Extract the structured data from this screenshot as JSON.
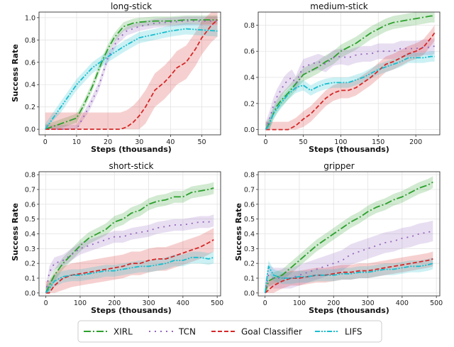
{
  "chart_data": {
    "type": "line",
    "legend": {
      "placement": "bottom",
      "entries": [
        {
          "name": "XIRL",
          "color": "#2ca02c",
          "style": "dashdot"
        },
        {
          "name": "TCN",
          "color": "#9467bd",
          "style": "loosedash"
        },
        {
          "name": "Goal Classifier",
          "color": "#d62728",
          "style": "dashed"
        },
        {
          "name": "LIFS",
          "color": "#17becf",
          "style": "dashdotdot"
        }
      ]
    },
    "colors": {
      "XIRL": "#2ca02c",
      "TCN": "#9467bd",
      "Goal Classifier": "#d62728",
      "LIFS": "#17becf"
    },
    "charts": [
      {
        "title": "long-stick",
        "xlabel": "Steps (thousands)",
        "ylabel": "Success Rate",
        "xlim": [
          -2,
          56
        ],
        "ylim": [
          -0.05,
          1.05
        ],
        "xticks": [
          0,
          10,
          20,
          30,
          40,
          50
        ],
        "yticks": [
          0.0,
          0.2,
          0.4,
          0.6,
          0.8,
          1.0
        ],
        "ytick_labels": [
          "0.0",
          "0.2",
          "0.4",
          "0.6",
          "0.8",
          "1.0"
        ],
        "grid": true,
        "series": [
          {
            "name": "XIRL",
            "x": [
              0,
              5,
              10,
              12,
              15,
              18,
              20,
              22,
              25,
              28,
              30,
              35,
              40,
              45,
              50,
              55
            ],
            "values": [
              0.0,
              0.05,
              0.1,
              0.2,
              0.38,
              0.6,
              0.72,
              0.82,
              0.92,
              0.95,
              0.96,
              0.97,
              0.97,
              0.98,
              0.98,
              0.98
            ],
            "band": 0.04
          },
          {
            "name": "TCN",
            "x": [
              0,
              5,
              10,
              14,
              17,
              20,
              23,
              26,
              30,
              35,
              40,
              45,
              50,
              55
            ],
            "values": [
              0.0,
              0.0,
              0.0,
              0.2,
              0.38,
              0.64,
              0.8,
              0.88,
              0.92,
              0.95,
              0.96,
              0.97,
              0.97,
              0.97
            ],
            "band": 0.04
          },
          {
            "name": "Goal Classifier",
            "x": [
              0,
              5,
              10,
              15,
              20,
              24,
              26,
              28,
              30,
              32,
              35,
              38,
              40,
              42,
              45,
              48,
              50,
              53,
              55
            ],
            "values": [
              0.0,
              0.0,
              0.0,
              0.0,
              0.0,
              0.0,
              0.02,
              0.06,
              0.12,
              0.2,
              0.35,
              0.42,
              0.48,
              0.55,
              0.6,
              0.72,
              0.82,
              0.93,
              0.98
            ],
            "band": 0.15
          },
          {
            "name": "LIFS",
            "x": [
              0,
              5,
              10,
              15,
              20,
              25,
              30,
              35,
              40,
              45,
              50,
              55
            ],
            "values": [
              0.0,
              0.2,
              0.4,
              0.55,
              0.65,
              0.74,
              0.82,
              0.85,
              0.88,
              0.9,
              0.89,
              0.88
            ],
            "band": 0.05
          }
        ]
      },
      {
        "title": "medium-stick",
        "xlabel": "Steps (thousands)",
        "ylabel": "",
        "xlim": [
          -10,
          232
        ],
        "ylim": [
          -0.04,
          0.9
        ],
        "xticks": [
          0,
          50,
          100,
          150,
          200
        ],
        "yticks": [
          0.0,
          0.2,
          0.4,
          0.6,
          0.8
        ],
        "ytick_labels": [
          "0.0",
          "0.2",
          "0.4",
          "0.6",
          "0.8"
        ],
        "grid": true,
        "series": [
          {
            "name": "XIRL",
            "x": [
              0,
              5,
              10,
              15,
              20,
              30,
              40,
              50,
              60,
              70,
              80,
              90,
              100,
              110,
              120,
              130,
              140,
              150,
              160,
              170,
              180,
              190,
              200,
              210,
              220,
              225
            ],
            "values": [
              0.0,
              0.05,
              0.12,
              0.18,
              0.22,
              0.28,
              0.35,
              0.42,
              0.45,
              0.48,
              0.52,
              0.55,
              0.6,
              0.63,
              0.66,
              0.7,
              0.74,
              0.77,
              0.8,
              0.82,
              0.83,
              0.84,
              0.85,
              0.86,
              0.87,
              0.87
            ],
            "band": 0.05
          },
          {
            "name": "TCN",
            "x": [
              0,
              5,
              10,
              15,
              20,
              25,
              30,
              35,
              40,
              45,
              50,
              60,
              70,
              80,
              90,
              100,
              110,
              120,
              130,
              140,
              150,
              160,
              170,
              180,
              190,
              200,
              210,
              220,
              225
            ],
            "values": [
              0.0,
              0.08,
              0.18,
              0.25,
              0.3,
              0.35,
              0.38,
              0.4,
              0.35,
              0.42,
              0.48,
              0.5,
              0.52,
              0.5,
              0.55,
              0.56,
              0.55,
              0.57,
              0.58,
              0.58,
              0.6,
              0.6,
              0.6,
              0.62,
              0.62,
              0.62,
              0.63,
              0.63,
              0.64
            ],
            "band": 0.06
          },
          {
            "name": "Goal Classifier",
            "x": [
              0,
              10,
              20,
              30,
              40,
              50,
              60,
              70,
              80,
              90,
              100,
              110,
              120,
              130,
              140,
              150,
              160,
              170,
              180,
              190,
              200,
              210,
              220,
              225
            ],
            "values": [
              0.0,
              0.0,
              0.0,
              0.0,
              0.03,
              0.08,
              0.12,
              0.18,
              0.24,
              0.28,
              0.3,
              0.3,
              0.32,
              0.36,
              0.4,
              0.45,
              0.5,
              0.52,
              0.55,
              0.58,
              0.6,
              0.63,
              0.7,
              0.74
            ],
            "band": 0.06
          },
          {
            "name": "LIFS",
            "x": [
              0,
              5,
              10,
              20,
              30,
              40,
              50,
              60,
              70,
              80,
              90,
              100,
              110,
              120,
              130,
              140,
              150,
              160,
              170,
              180,
              190,
              200,
              210,
              220,
              225
            ],
            "values": [
              0.0,
              0.04,
              0.12,
              0.2,
              0.27,
              0.32,
              0.34,
              0.3,
              0.33,
              0.35,
              0.36,
              0.36,
              0.36,
              0.38,
              0.4,
              0.43,
              0.46,
              0.48,
              0.5,
              0.52,
              0.55,
              0.55,
              0.55,
              0.56,
              0.56
            ],
            "band": 0.04
          }
        ]
      },
      {
        "title": "short-stick",
        "xlabel": "Steps (thousands)",
        "ylabel": "Success Rate",
        "xlim": [
          -20,
          510
        ],
        "ylim": [
          -0.02,
          0.82
        ],
        "xticks": [
          0,
          100,
          200,
          300,
          400,
          500
        ],
        "yticks": [
          0.0,
          0.1,
          0.2,
          0.3,
          0.4,
          0.5,
          0.6,
          0.7,
          0.8
        ],
        "ytick_labels": [
          "0.0",
          "0.1",
          "0.2",
          "0.3",
          "0.4",
          "0.5",
          "0.6",
          "0.7",
          "0.8"
        ],
        "grid": true,
        "series": [
          {
            "name": "XIRL",
            "x": [
              0,
              10,
              25,
              50,
              75,
              100,
              125,
              150,
              175,
              200,
              225,
              250,
              275,
              300,
              325,
              350,
              375,
              400,
              425,
              450,
              475,
              490
            ],
            "values": [
              0.0,
              0.05,
              0.12,
              0.2,
              0.26,
              0.32,
              0.37,
              0.4,
              0.43,
              0.48,
              0.5,
              0.54,
              0.56,
              0.6,
              0.62,
              0.63,
              0.65,
              0.65,
              0.68,
              0.69,
              0.7,
              0.71
            ],
            "band": 0.04
          },
          {
            "name": "TCN",
            "x": [
              0,
              10,
              25,
              50,
              75,
              100,
              125,
              150,
              175,
              200,
              225,
              250,
              275,
              300,
              325,
              350,
              375,
              400,
              425,
              450,
              475,
              490
            ],
            "values": [
              0.0,
              0.14,
              0.2,
              0.22,
              0.26,
              0.3,
              0.32,
              0.34,
              0.36,
              0.38,
              0.38,
              0.4,
              0.41,
              0.42,
              0.44,
              0.45,
              0.46,
              0.46,
              0.47,
              0.48,
              0.48,
              0.49
            ],
            "band": 0.04
          },
          {
            "name": "Goal Classifier",
            "x": [
              0,
              10,
              25,
              50,
              75,
              100,
              125,
              150,
              175,
              200,
              225,
              250,
              275,
              300,
              325,
              350,
              375,
              400,
              425,
              450,
              475,
              490
            ],
            "values": [
              0.0,
              0.0,
              0.05,
              0.1,
              0.12,
              0.13,
              0.14,
              0.15,
              0.16,
              0.17,
              0.18,
              0.2,
              0.2,
              0.22,
              0.23,
              0.23,
              0.25,
              0.27,
              0.29,
              0.31,
              0.34,
              0.36
            ],
            "band": 0.08
          },
          {
            "name": "LIFS",
            "x": [
              0,
              10,
              25,
              50,
              75,
              100,
              125,
              150,
              175,
              200,
              225,
              250,
              275,
              300,
              325,
              350,
              375,
              400,
              425,
              450,
              475,
              490
            ],
            "values": [
              0.0,
              0.03,
              0.08,
              0.11,
              0.12,
              0.12,
              0.13,
              0.14,
              0.15,
              0.15,
              0.16,
              0.17,
              0.18,
              0.18,
              0.19,
              0.2,
              0.22,
              0.22,
              0.24,
              0.24,
              0.23,
              0.24
            ],
            "band": 0.04
          }
        ]
      },
      {
        "title": "gripper",
        "xlabel": "Steps (thousands)",
        "ylabel": "Success Rate",
        "xlim": [
          -20,
          510
        ],
        "ylim": [
          -0.02,
          0.82
        ],
        "xticks": [
          0,
          100,
          200,
          300,
          400,
          500
        ],
        "yticks": [
          0.0,
          0.1,
          0.2,
          0.3,
          0.4,
          0.5,
          0.6,
          0.7,
          0.8
        ],
        "ytick_labels": [
          "0.0",
          "0.1",
          "0.2",
          "0.3",
          "0.4",
          "0.5",
          "0.6",
          "0.7",
          "0.8"
        ],
        "grid": true,
        "series": [
          {
            "name": "XIRL",
            "x": [
              0,
              10,
              25,
              50,
              75,
              100,
              125,
              150,
              175,
              200,
              225,
              250,
              275,
              300,
              325,
              350,
              375,
              400,
              425,
              450,
              475,
              490
            ],
            "values": [
              0.0,
              0.08,
              0.1,
              0.12,
              0.17,
              0.22,
              0.27,
              0.32,
              0.36,
              0.4,
              0.44,
              0.48,
              0.51,
              0.55,
              0.58,
              0.6,
              0.63,
              0.65,
              0.68,
              0.71,
              0.73,
              0.75
            ],
            "band": 0.04
          },
          {
            "name": "TCN",
            "x": [
              0,
              10,
              25,
              50,
              75,
              100,
              125,
              150,
              175,
              200,
              225,
              250,
              275,
              300,
              325,
              350,
              375,
              400,
              425,
              450,
              475,
              490
            ],
            "values": [
              0.0,
              0.12,
              0.1,
              0.1,
              0.1,
              0.12,
              0.14,
              0.16,
              0.18,
              0.2,
              0.22,
              0.26,
              0.28,
              0.3,
              0.32,
              0.34,
              0.35,
              0.37,
              0.38,
              0.4,
              0.41,
              0.42
            ],
            "band": 0.07
          },
          {
            "name": "Goal Classifier",
            "x": [
              0,
              10,
              25,
              50,
              75,
              100,
              125,
              150,
              175,
              200,
              225,
              250,
              275,
              300,
              325,
              350,
              375,
              400,
              425,
              450,
              475,
              490
            ],
            "values": [
              0.0,
              0.02,
              0.05,
              0.08,
              0.1,
              0.1,
              0.11,
              0.12,
              0.12,
              0.13,
              0.14,
              0.14,
              0.15,
              0.15,
              0.16,
              0.17,
              0.18,
              0.19,
              0.2,
              0.21,
              0.22,
              0.23
            ],
            "band": 0.05
          },
          {
            "name": "LIFS",
            "x": [
              0,
              10,
              25,
              50,
              75,
              100,
              125,
              150,
              175,
              200,
              225,
              250,
              275,
              300,
              325,
              350,
              375,
              400,
              425,
              450,
              475,
              490
            ],
            "values": [
              0.0,
              0.18,
              0.12,
              0.1,
              0.1,
              0.11,
              0.11,
              0.12,
              0.12,
              0.12,
              0.13,
              0.13,
              0.14,
              0.14,
              0.15,
              0.16,
              0.16,
              0.17,
              0.18,
              0.18,
              0.19,
              0.2
            ],
            "band": 0.04
          }
        ]
      }
    ]
  }
}
